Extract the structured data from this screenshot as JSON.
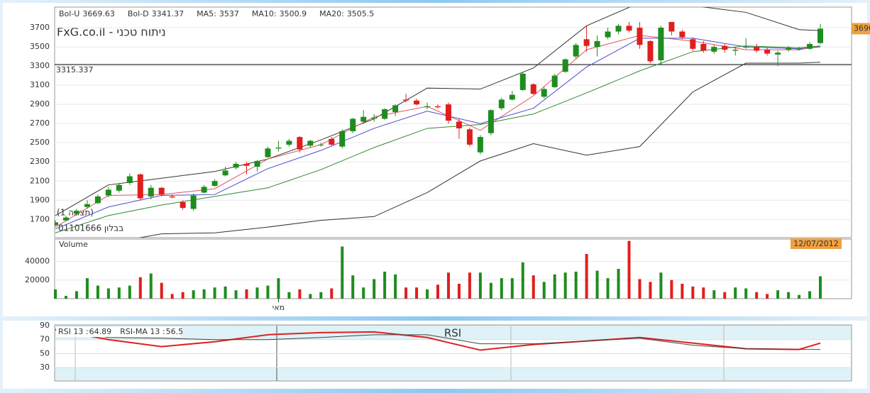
{
  "header": {
    "brand": "FxG.co.il - ניתוח טכני",
    "symbol_text": "01101666 בבלון",
    "view_text": "(תצוגה 1)"
  },
  "chart_data": [
    {
      "type": "candlestick",
      "categories": [
        null,
        null,
        null,
        null,
        null,
        null,
        null,
        null,
        null,
        null,
        null,
        null,
        null,
        null,
        null,
        null,
        null,
        null,
        null,
        null,
        null,
        "מאי",
        null,
        null,
        null,
        null,
        null,
        null,
        null,
        null,
        null,
        null,
        null,
        null,
        null,
        null,
        null,
        null,
        null,
        null,
        null,
        null,
        null,
        null,
        null,
        null,
        null,
        null,
        null,
        null,
        null,
        null,
        null,
        null,
        null,
        null,
        null,
        null,
        null,
        null,
        null,
        null,
        null,
        null,
        null,
        null,
        null,
        null,
        null,
        null,
        null,
        null,
        null
      ],
      "open": [
        1640,
        1690,
        1760,
        1830,
        1870,
        1950,
        2000,
        2080,
        2170,
        1940,
        2030,
        1940,
        1880,
        1810,
        1980,
        2050,
        2160,
        2240,
        2280,
        2250,
        2350,
        2440,
        2480,
        2560,
        2470,
        2480,
        2540,
        2460,
        2620,
        2720,
        2750,
        2750,
        2820,
        2950,
        2940,
        2870,
        2880,
        2900,
        2720,
        2640,
        2400,
        2600,
        2860,
        2950,
        3050,
        3110,
        2980,
        3080,
        3240,
        3400,
        3580,
        3500,
        3600,
        3660,
        3720,
        3700,
        3560,
        3360,
        3760,
        3660,
        3580,
        3530,
        3450,
        3510,
        3460,
        3500,
        3500,
        3470,
        3420,
        3470,
        3480,
        3480,
        3540
      ],
      "high": [
        1690,
        1740,
        1810,
        1900,
        1960,
        2040,
        2080,
        2180,
        2180,
        2060,
        2040,
        1960,
        1900,
        1970,
        2060,
        2120,
        2250,
        2300,
        2300,
        2320,
        2460,
        2520,
        2540,
        2570,
        2530,
        2500,
        2560,
        2640,
        2760,
        2840,
        2800,
        2860,
        2900,
        3010,
        2960,
        2920,
        2900,
        2920,
        2750,
        2660,
        2580,
        2850,
        2970,
        3040,
        3240,
        3120,
        3080,
        3220,
        3380,
        3540,
        3720,
        3620,
        3700,
        3740,
        3760,
        3760,
        3570,
        3720,
        3760,
        3680,
        3600,
        3560,
        3520,
        3530,
        3500,
        3590,
        3530,
        3490,
        3460,
        3510,
        3500,
        3550,
        3740
      ],
      "low": [
        1630,
        1680,
        1740,
        1810,
        1860,
        1930,
        1980,
        2060,
        1900,
        1910,
        1940,
        1920,
        1800,
        1790,
        1970,
        2040,
        2150,
        2220,
        2170,
        2200,
        2340,
        2410,
        2460,
        2400,
        2450,
        2460,
        2460,
        2440,
        2600,
        2700,
        2720,
        2740,
        2780,
        2920,
        2890,
        2850,
        2860,
        2700,
        2540,
        2460,
        2380,
        2580,
        2840,
        2940,
        3040,
        3000,
        2960,
        3070,
        3230,
        3380,
        3450,
        3400,
        3580,
        3630,
        3650,
        3480,
        3330,
        3320,
        3620,
        3580,
        3460,
        3440,
        3430,
        3440,
        3410,
        3480,
        3440,
        3410,
        3300,
        3450,
        3460,
        3470,
        3530
      ],
      "close": [
        1670,
        1720,
        1790,
        1860,
        1940,
        2010,
        2060,
        2150,
        1920,
        2030,
        1960,
        1930,
        1820,
        1950,
        2040,
        2100,
        2210,
        2280,
        2260,
        2310,
        2440,
        2450,
        2520,
        2430,
        2520,
        2480,
        2480,
        2620,
        2750,
        2770,
        2760,
        2850,
        2890,
        2940,
        2900,
        2880,
        2870,
        2730,
        2650,
        2480,
        2560,
        2840,
        2950,
        3000,
        3220,
        3010,
        3060,
        3200,
        3370,
        3520,
        3510,
        3560,
        3660,
        3720,
        3670,
        3520,
        3350,
        3700,
        3660,
        3600,
        3480,
        3460,
        3500,
        3470,
        3470,
        3500,
        3460,
        3430,
        3440,
        3490,
        3480,
        3530,
        3690
      ],
      "up_color": "#1e8c1e",
      "down_color": "#e01e1e",
      "ylim": [
        1510,
        3915
      ],
      "yticks": [
        1700,
        1900,
        2100,
        2300,
        2500,
        2700,
        2900,
        3100,
        3300,
        3500,
        3700
      ],
      "grid": true,
      "reference_line": 3315.337,
      "last_price": 3690,
      "lines": [
        {
          "name": "Bol-U",
          "legend_value": 3669.63,
          "color": "#333333",
          "x": [
            0,
            5,
            10,
            15,
            20,
            25,
            30,
            35,
            40,
            45,
            50,
            55,
            60,
            65,
            70,
            72
          ],
          "values": [
            1740,
            2060,
            2130,
            2200,
            2330,
            2530,
            2750,
            3070,
            3060,
            3280,
            3720,
            3960,
            3930,
            3860,
            3680,
            3670
          ]
        },
        {
          "name": "Bol-D",
          "legend_value": 3341.37,
          "color": "#333333",
          "x": [
            0,
            5,
            10,
            15,
            20,
            25,
            30,
            35,
            40,
            45,
            50,
            55,
            60,
            65,
            70,
            72
          ],
          "values": [
            1400,
            1450,
            1550,
            1560,
            1620,
            1690,
            1730,
            1980,
            2310,
            2490,
            2370,
            2460,
            3030,
            3330,
            3330,
            3340
          ]
        },
        {
          "name": "MA5:",
          "legend_value": 3537,
          "color": "#e05555",
          "x": [
            0,
            5,
            10,
            15,
            20,
            25,
            30,
            35,
            40,
            45,
            50,
            55,
            60,
            65,
            70,
            72
          ],
          "values": [
            1620,
            1950,
            1960,
            2020,
            2330,
            2480,
            2770,
            2880,
            2630,
            2990,
            3470,
            3620,
            3560,
            3470,
            3470,
            3510
          ]
        },
        {
          "name": "MA10:",
          "legend_value": 3500.9,
          "color": "#4b4bd0",
          "x": [
            0,
            5,
            10,
            15,
            20,
            25,
            30,
            35,
            40,
            45,
            50,
            55,
            60,
            65,
            70,
            72
          ],
          "values": [
            1600,
            1830,
            1950,
            1960,
            2230,
            2420,
            2650,
            2830,
            2700,
            2860,
            3290,
            3590,
            3590,
            3500,
            3480,
            3500
          ]
        },
        {
          "name": "MA20:",
          "legend_value": 3505.5,
          "color": "#2e8b2e",
          "x": [
            0,
            5,
            10,
            15,
            20,
            25,
            30,
            35,
            40,
            45,
            50,
            55,
            60,
            65,
            70,
            72
          ],
          "values": [
            1560,
            1740,
            1850,
            1940,
            2030,
            2220,
            2450,
            2650,
            2690,
            2800,
            3020,
            3250,
            3450,
            3510,
            3490,
            3510
          ]
        }
      ]
    },
    {
      "type": "bar",
      "title": "Volume",
      "date_tag": "12/07/2012",
      "values": [
        10000,
        3000,
        8000,
        22000,
        14000,
        11000,
        12000,
        14000,
        23000,
        27000,
        17000,
        5000,
        7000,
        9000,
        10000,
        12000,
        13000,
        9000,
        10000,
        12000,
        14000,
        22000,
        7000,
        10000,
        5000,
        7000,
        11000,
        56000,
        25000,
        12000,
        21000,
        29000,
        26000,
        12000,
        12000,
        10000,
        15000,
        28000,
        16000,
        28000,
        28000,
        17000,
        22000,
        22000,
        39000,
        25000,
        18000,
        26000,
        28000,
        29000,
        48000,
        30000,
        22000,
        32000,
        62000,
        21000,
        18000,
        28000,
        20000,
        16000,
        13000,
        12000,
        9000,
        7000,
        12000,
        11000,
        7000,
        5000,
        9000,
        7000,
        4000,
        8000,
        24000
      ],
      "ylim": [
        0,
        64000
      ],
      "yticks": [
        20000,
        40000
      ]
    },
    {
      "type": "line",
      "title": "RSI",
      "series": [
        {
          "name": "RSI 13 :",
          "legend_value": 64.89,
          "color": "#e02020",
          "x": [
            0,
            5,
            10,
            15,
            20,
            25,
            30,
            35,
            40,
            45,
            50,
            55,
            60,
            65,
            70,
            72
          ],
          "values": [
            84,
            70,
            60,
            67,
            77,
            80,
            81,
            73,
            55,
            63,
            68,
            73,
            65,
            57,
            56,
            65
          ]
        },
        {
          "name": "RSI-MA 13 :",
          "legend_value": 56.5,
          "color": "#444444",
          "x": [
            0,
            5,
            10,
            15,
            20,
            25,
            30,
            35,
            40,
            45,
            50,
            55,
            60,
            65,
            70,
            72
          ],
          "values": [
            85,
            73,
            72,
            70,
            70,
            73,
            77,
            77,
            64,
            64,
            68,
            72,
            62,
            57,
            56,
            56
          ]
        }
      ],
      "ylim": [
        11,
        91
      ],
      "yticks": [
        30,
        50,
        70,
        90
      ]
    }
  ]
}
